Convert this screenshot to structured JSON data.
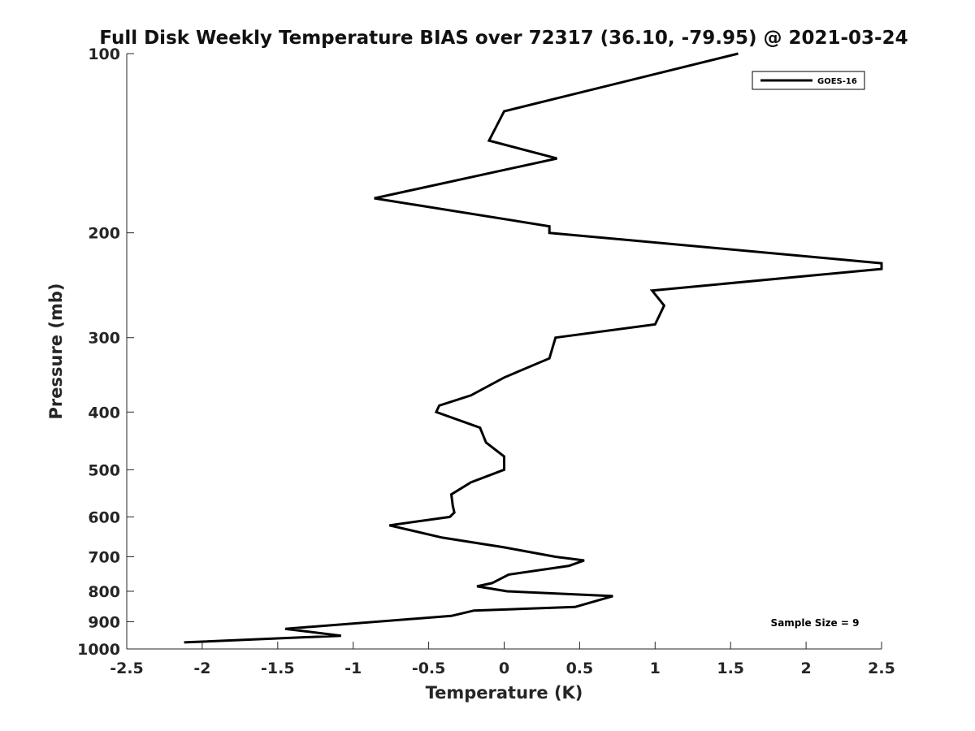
{
  "chart_data": {
    "type": "line",
    "title": "Full Disk Weekly Temperature BIAS over 72317 (36.10, -79.95) @ 2021-03-24",
    "xlabel": "Temperature (K)",
    "ylabel": "Pressure (mb)",
    "xlim": [
      -2.5,
      2.5
    ],
    "ylim": [
      100,
      1000
    ],
    "yscale": "log",
    "yaxis_reversed": true,
    "grid": false,
    "legend": "top-right",
    "xticks": [
      -2.5,
      -2,
      -1.5,
      -1,
      -0.5,
      0,
      0.5,
      1,
      1.5,
      2,
      2.5
    ],
    "xtick_labels": [
      "-2.5",
      "-2",
      "-1.5",
      "-1",
      "-0.5",
      "0",
      "0.5",
      "1",
      "1.5",
      "2",
      "2.5"
    ],
    "yticks": [
      100,
      200,
      300,
      400,
      500,
      600,
      700,
      800,
      900,
      1000
    ],
    "ytick_labels": [
      "100",
      "200",
      "300",
      "400",
      "500",
      "600",
      "700",
      "800",
      "900",
      "1000"
    ],
    "series": [
      {
        "name": "GOES-16",
        "color": "#000000",
        "points": [
          {
            "p": 100,
            "t": 1.55
          },
          {
            "p": 125,
            "t": 0.0
          },
          {
            "p": 140,
            "t": -0.1
          },
          {
            "p": 150,
            "t": 0.35
          },
          {
            "p": 175,
            "t": -0.86
          },
          {
            "p": 195,
            "t": 0.3
          },
          {
            "p": 200,
            "t": 0.3
          },
          {
            "p": 225,
            "t": 2.5
          },
          {
            "p": 230,
            "t": 2.5
          },
          {
            "p": 250,
            "t": 0.98
          },
          {
            "p": 265,
            "t": 1.06
          },
          {
            "p": 285,
            "t": 1.0
          },
          {
            "p": 300,
            "t": 0.34
          },
          {
            "p": 325,
            "t": 0.3
          },
          {
            "p": 350,
            "t": 0.0
          },
          {
            "p": 375,
            "t": -0.22
          },
          {
            "p": 390,
            "t": -0.43
          },
          {
            "p": 400,
            "t": -0.45
          },
          {
            "p": 425,
            "t": -0.16
          },
          {
            "p": 450,
            "t": -0.12
          },
          {
            "p": 475,
            "t": 0.0
          },
          {
            "p": 500,
            "t": 0.0
          },
          {
            "p": 525,
            "t": -0.22
          },
          {
            "p": 550,
            "t": -0.35
          },
          {
            "p": 575,
            "t": -0.34
          },
          {
            "p": 590,
            "t": -0.33
          },
          {
            "p": 600,
            "t": -0.36
          },
          {
            "p": 620,
            "t": -0.76
          },
          {
            "p": 650,
            "t": -0.41
          },
          {
            "p": 675,
            "t": 0.0
          },
          {
            "p": 700,
            "t": 0.34
          },
          {
            "p": 710,
            "t": 0.53
          },
          {
            "p": 725,
            "t": 0.43
          },
          {
            "p": 750,
            "t": 0.03
          },
          {
            "p": 775,
            "t": -0.08
          },
          {
            "p": 785,
            "t": -0.18
          },
          {
            "p": 800,
            "t": 0.02
          },
          {
            "p": 815,
            "t": 0.72
          },
          {
            "p": 850,
            "t": 0.47
          },
          {
            "p": 862,
            "t": -0.2
          },
          {
            "p": 880,
            "t": -0.35
          },
          {
            "p": 925,
            "t": -1.45
          },
          {
            "p": 950,
            "t": -1.08
          },
          {
            "p": 975,
            "t": -2.12
          }
        ]
      }
    ],
    "annotations": [
      {
        "text": "Sample Size = 9"
      }
    ]
  }
}
